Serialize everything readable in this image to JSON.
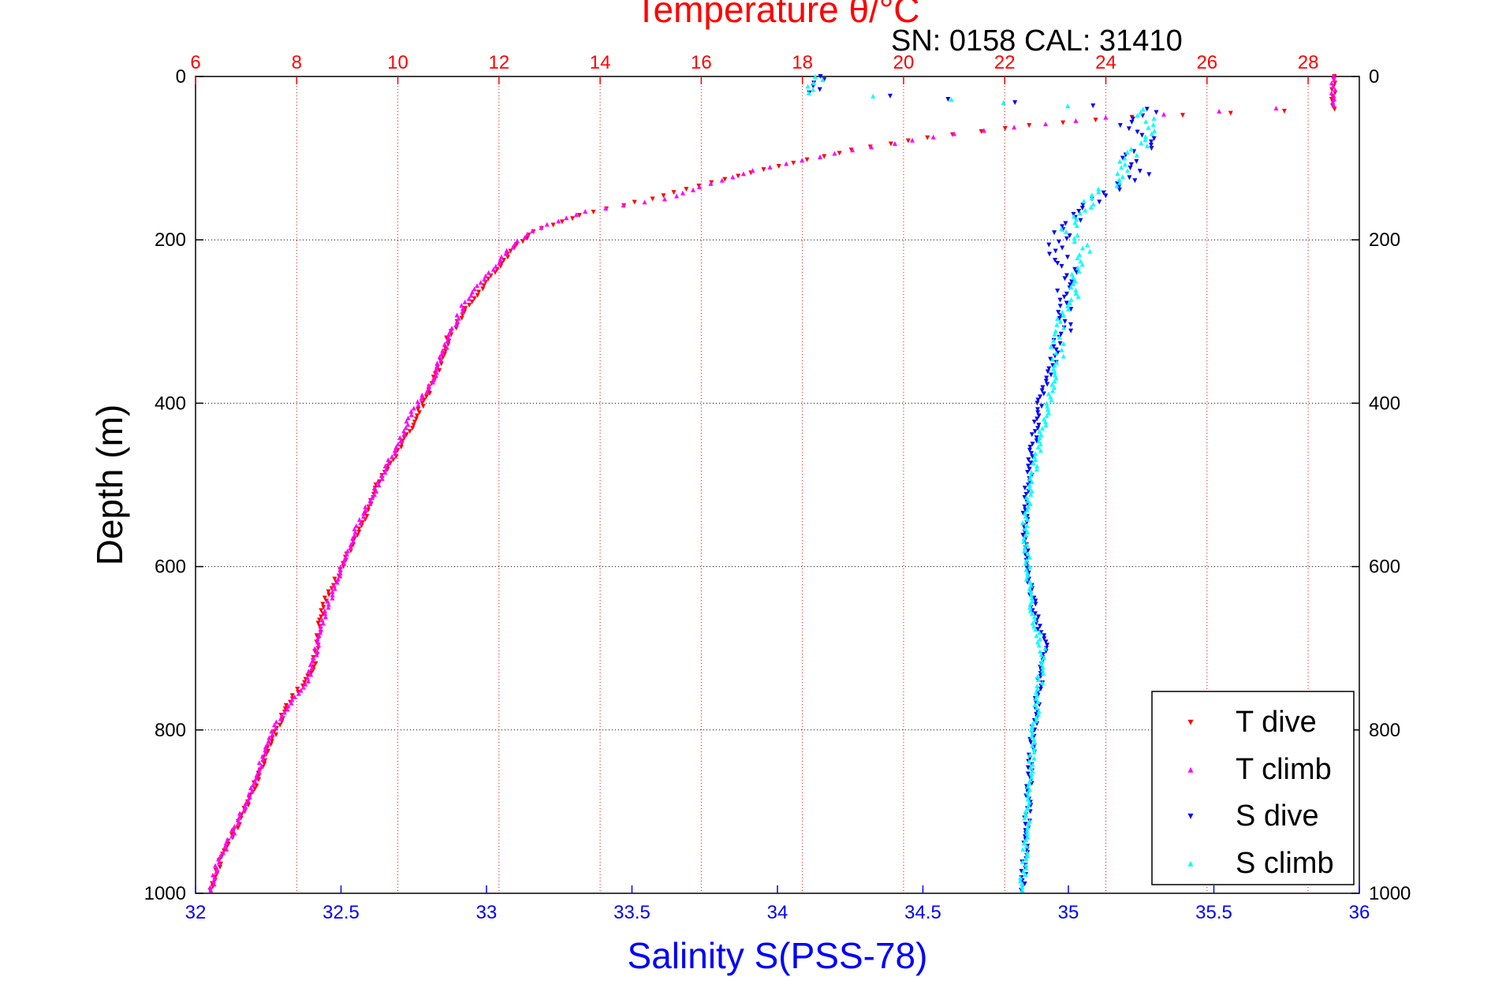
{
  "chart_data": {
    "type": "scatter",
    "title": "Temperature θ/°C",
    "subtitle": "SN: 0158  CAL: 31410",
    "ylabel": "Depth (m)",
    "xlabel_bottom": "Salinity S(PSS-78)",
    "ylim": [
      1000,
      0
    ],
    "y_inverted": true,
    "x_bottom_lim": [
      32,
      36
    ],
    "x_top_lim": [
      6,
      29
    ],
    "y_ticks": [
      "0",
      "200",
      "400",
      "600",
      "800",
      "1000"
    ],
    "x_bottom_ticks": [
      "32",
      "32.5",
      "33",
      "33.5",
      "34",
      "34.5",
      "35",
      "35.5",
      "36"
    ],
    "x_top_ticks": [
      "6",
      "8",
      "10",
      "12",
      "14",
      "16",
      "18",
      "20",
      "22",
      "24",
      "26",
      "28"
    ],
    "grid": true,
    "legend_position": "bottom-right",
    "colors": {
      "temperature_axis": "#ff0000",
      "salinity_axis": "#0000ff",
      "t_dive": "#ff0000",
      "t_climb": "#ff00ff",
      "s_dive": "#0000ff",
      "s_climb": "#00ffff"
    },
    "series": [
      {
        "name": "T dive",
        "axis": "temperature",
        "marker": "triangle-down",
        "color": "#ff0000",
        "points": [
          [
            28.5,
            0
          ],
          [
            28.5,
            20
          ],
          [
            28.5,
            40
          ],
          [
            26.5,
            45
          ],
          [
            24.5,
            50
          ],
          [
            22.5,
            60
          ],
          [
            20.5,
            75
          ],
          [
            19.0,
            90
          ],
          [
            17.5,
            110
          ],
          [
            16.2,
            130
          ],
          [
            15.0,
            150
          ],
          [
            13.6,
            170
          ],
          [
            12.7,
            190
          ],
          [
            12.3,
            210
          ],
          [
            11.9,
            240
          ],
          [
            11.4,
            280
          ],
          [
            11.0,
            320
          ],
          [
            10.8,
            360
          ],
          [
            10.5,
            400
          ],
          [
            10.1,
            450
          ],
          [
            9.6,
            500
          ],
          [
            9.3,
            550
          ],
          [
            8.9,
            600
          ],
          [
            8.5,
            650
          ],
          [
            8.4,
            700
          ],
          [
            8.3,
            730
          ],
          [
            7.8,
            770
          ],
          [
            7.4,
            830
          ],
          [
            7.1,
            880
          ],
          [
            6.8,
            920
          ],
          [
            6.5,
            960
          ],
          [
            6.3,
            1000
          ]
        ]
      },
      {
        "name": "T climb",
        "axis": "temperature",
        "marker": "triangle-up",
        "color": "#ff00ff",
        "points": [
          [
            28.5,
            0
          ],
          [
            28.5,
            20
          ],
          [
            28.5,
            35
          ],
          [
            24.0,
            50
          ],
          [
            21.0,
            70
          ],
          [
            19.0,
            90
          ],
          [
            17.0,
            115
          ],
          [
            16.0,
            135
          ],
          [
            15.3,
            150
          ],
          [
            13.7,
            165
          ],
          [
            12.8,
            185
          ],
          [
            12.3,
            205
          ],
          [
            11.8,
            240
          ],
          [
            11.3,
            280
          ],
          [
            11.0,
            320
          ],
          [
            10.7,
            370
          ],
          [
            10.3,
            410
          ],
          [
            10.0,
            450
          ],
          [
            9.6,
            500
          ],
          [
            9.2,
            550
          ],
          [
            8.9,
            600
          ],
          [
            8.6,
            650
          ],
          [
            8.4,
            700
          ],
          [
            8.2,
            740
          ],
          [
            7.6,
            790
          ],
          [
            7.3,
            840
          ],
          [
            7.0,
            890
          ],
          [
            6.7,
            930
          ],
          [
            6.4,
            970
          ],
          [
            6.3,
            1000
          ]
        ]
      },
      {
        "name": "S dive",
        "axis": "salinity",
        "marker": "triangle-down",
        "color": "#0000ff",
        "points": [
          [
            34.15,
            0
          ],
          [
            34.13,
            20
          ],
          [
            35.3,
            40
          ],
          [
            35.2,
            60
          ],
          [
            35.3,
            80
          ],
          [
            35.2,
            100
          ],
          [
            35.25,
            120
          ],
          [
            35.1,
            150
          ],
          [
            35.0,
            180
          ],
          [
            34.95,
            210
          ],
          [
            35.0,
            240
          ],
          [
            34.98,
            270
          ],
          [
            35.0,
            300
          ],
          [
            34.95,
            350
          ],
          [
            34.9,
            400
          ],
          [
            34.88,
            450
          ],
          [
            34.86,
            500
          ],
          [
            34.85,
            550
          ],
          [
            34.86,
            600
          ],
          [
            34.88,
            650
          ],
          [
            34.92,
            700
          ],
          [
            34.9,
            750
          ],
          [
            34.88,
            800
          ],
          [
            34.87,
            850
          ],
          [
            34.86,
            900
          ],
          [
            34.85,
            950
          ],
          [
            34.84,
            1000
          ]
        ]
      },
      {
        "name": "S climb",
        "axis": "salinity",
        "marker": "triangle-up",
        "color": "#00ffff",
        "points": [
          [
            34.14,
            0
          ],
          [
            34.12,
            20
          ],
          [
            35.25,
            40
          ],
          [
            35.3,
            70
          ],
          [
            35.2,
            100
          ],
          [
            35.15,
            130
          ],
          [
            35.05,
            160
          ],
          [
            35.0,
            190
          ],
          [
            35.05,
            210
          ],
          [
            35.02,
            250
          ],
          [
            34.98,
            300
          ],
          [
            34.96,
            350
          ],
          [
            34.93,
            400
          ],
          [
            34.9,
            450
          ],
          [
            34.87,
            500
          ],
          [
            34.85,
            550
          ],
          [
            34.86,
            600
          ],
          [
            34.87,
            650
          ],
          [
            34.91,
            700
          ],
          [
            34.9,
            750
          ],
          [
            34.88,
            800
          ],
          [
            34.87,
            850
          ],
          [
            34.86,
            900
          ],
          [
            34.85,
            950
          ],
          [
            34.84,
            1000
          ]
        ]
      }
    ]
  }
}
